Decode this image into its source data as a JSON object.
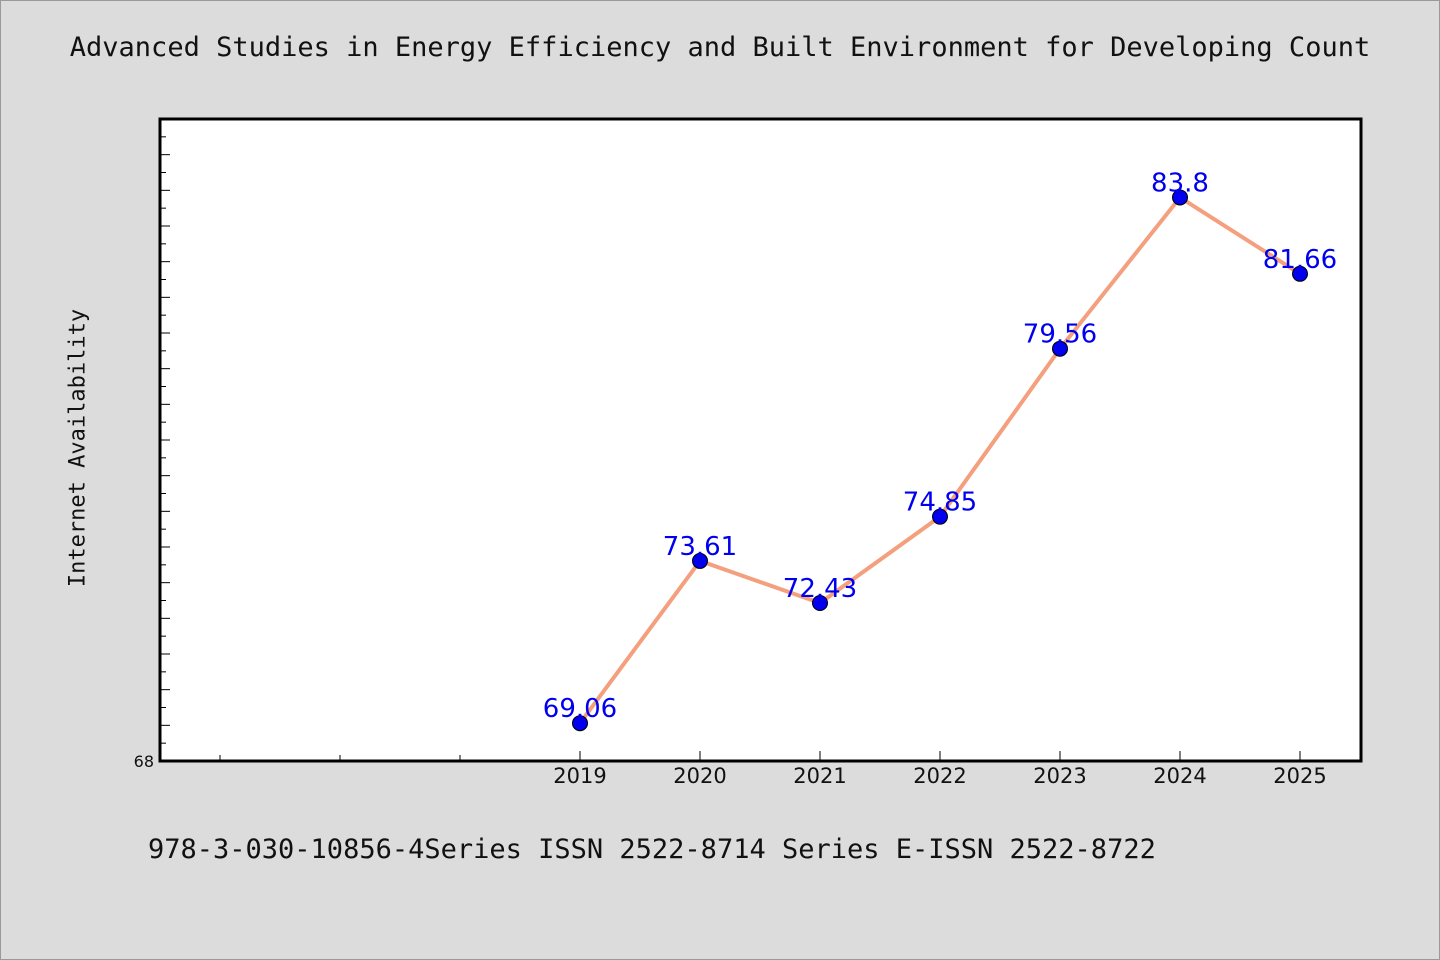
{
  "chart_data": {
    "type": "line",
    "title": "Advanced Studies in Energy Efficiency and Built Environment for Developing Count",
    "xlabel": "",
    "ylabel": "Internet Availability",
    "categories": [
      "2019",
      "2020",
      "2021",
      "2022",
      "2023",
      "2024",
      "2025"
    ],
    "series": [
      {
        "values": [
          69.06,
          73.61,
          72.43,
          74.85,
          79.56,
          83.8,
          81.66
        ]
      }
    ],
    "data_labels": [
      "69.06",
      "73.61",
      "72.43",
      "74.85",
      "79.56",
      "83.8",
      "81.66"
    ],
    "ylim": [
      68,
      86
    ],
    "y_tick_labels": [
      "68"
    ],
    "grid": false,
    "colors": {
      "line": "#f4a07e",
      "marker": "#0000ee",
      "label": "#0000ee",
      "background": "#dcdcdc",
      "plot_bg": "#ffffff"
    }
  },
  "footer": "978-3-030-10856-4Series ISSN 2522-8714 Series E-ISSN 2522-8722"
}
